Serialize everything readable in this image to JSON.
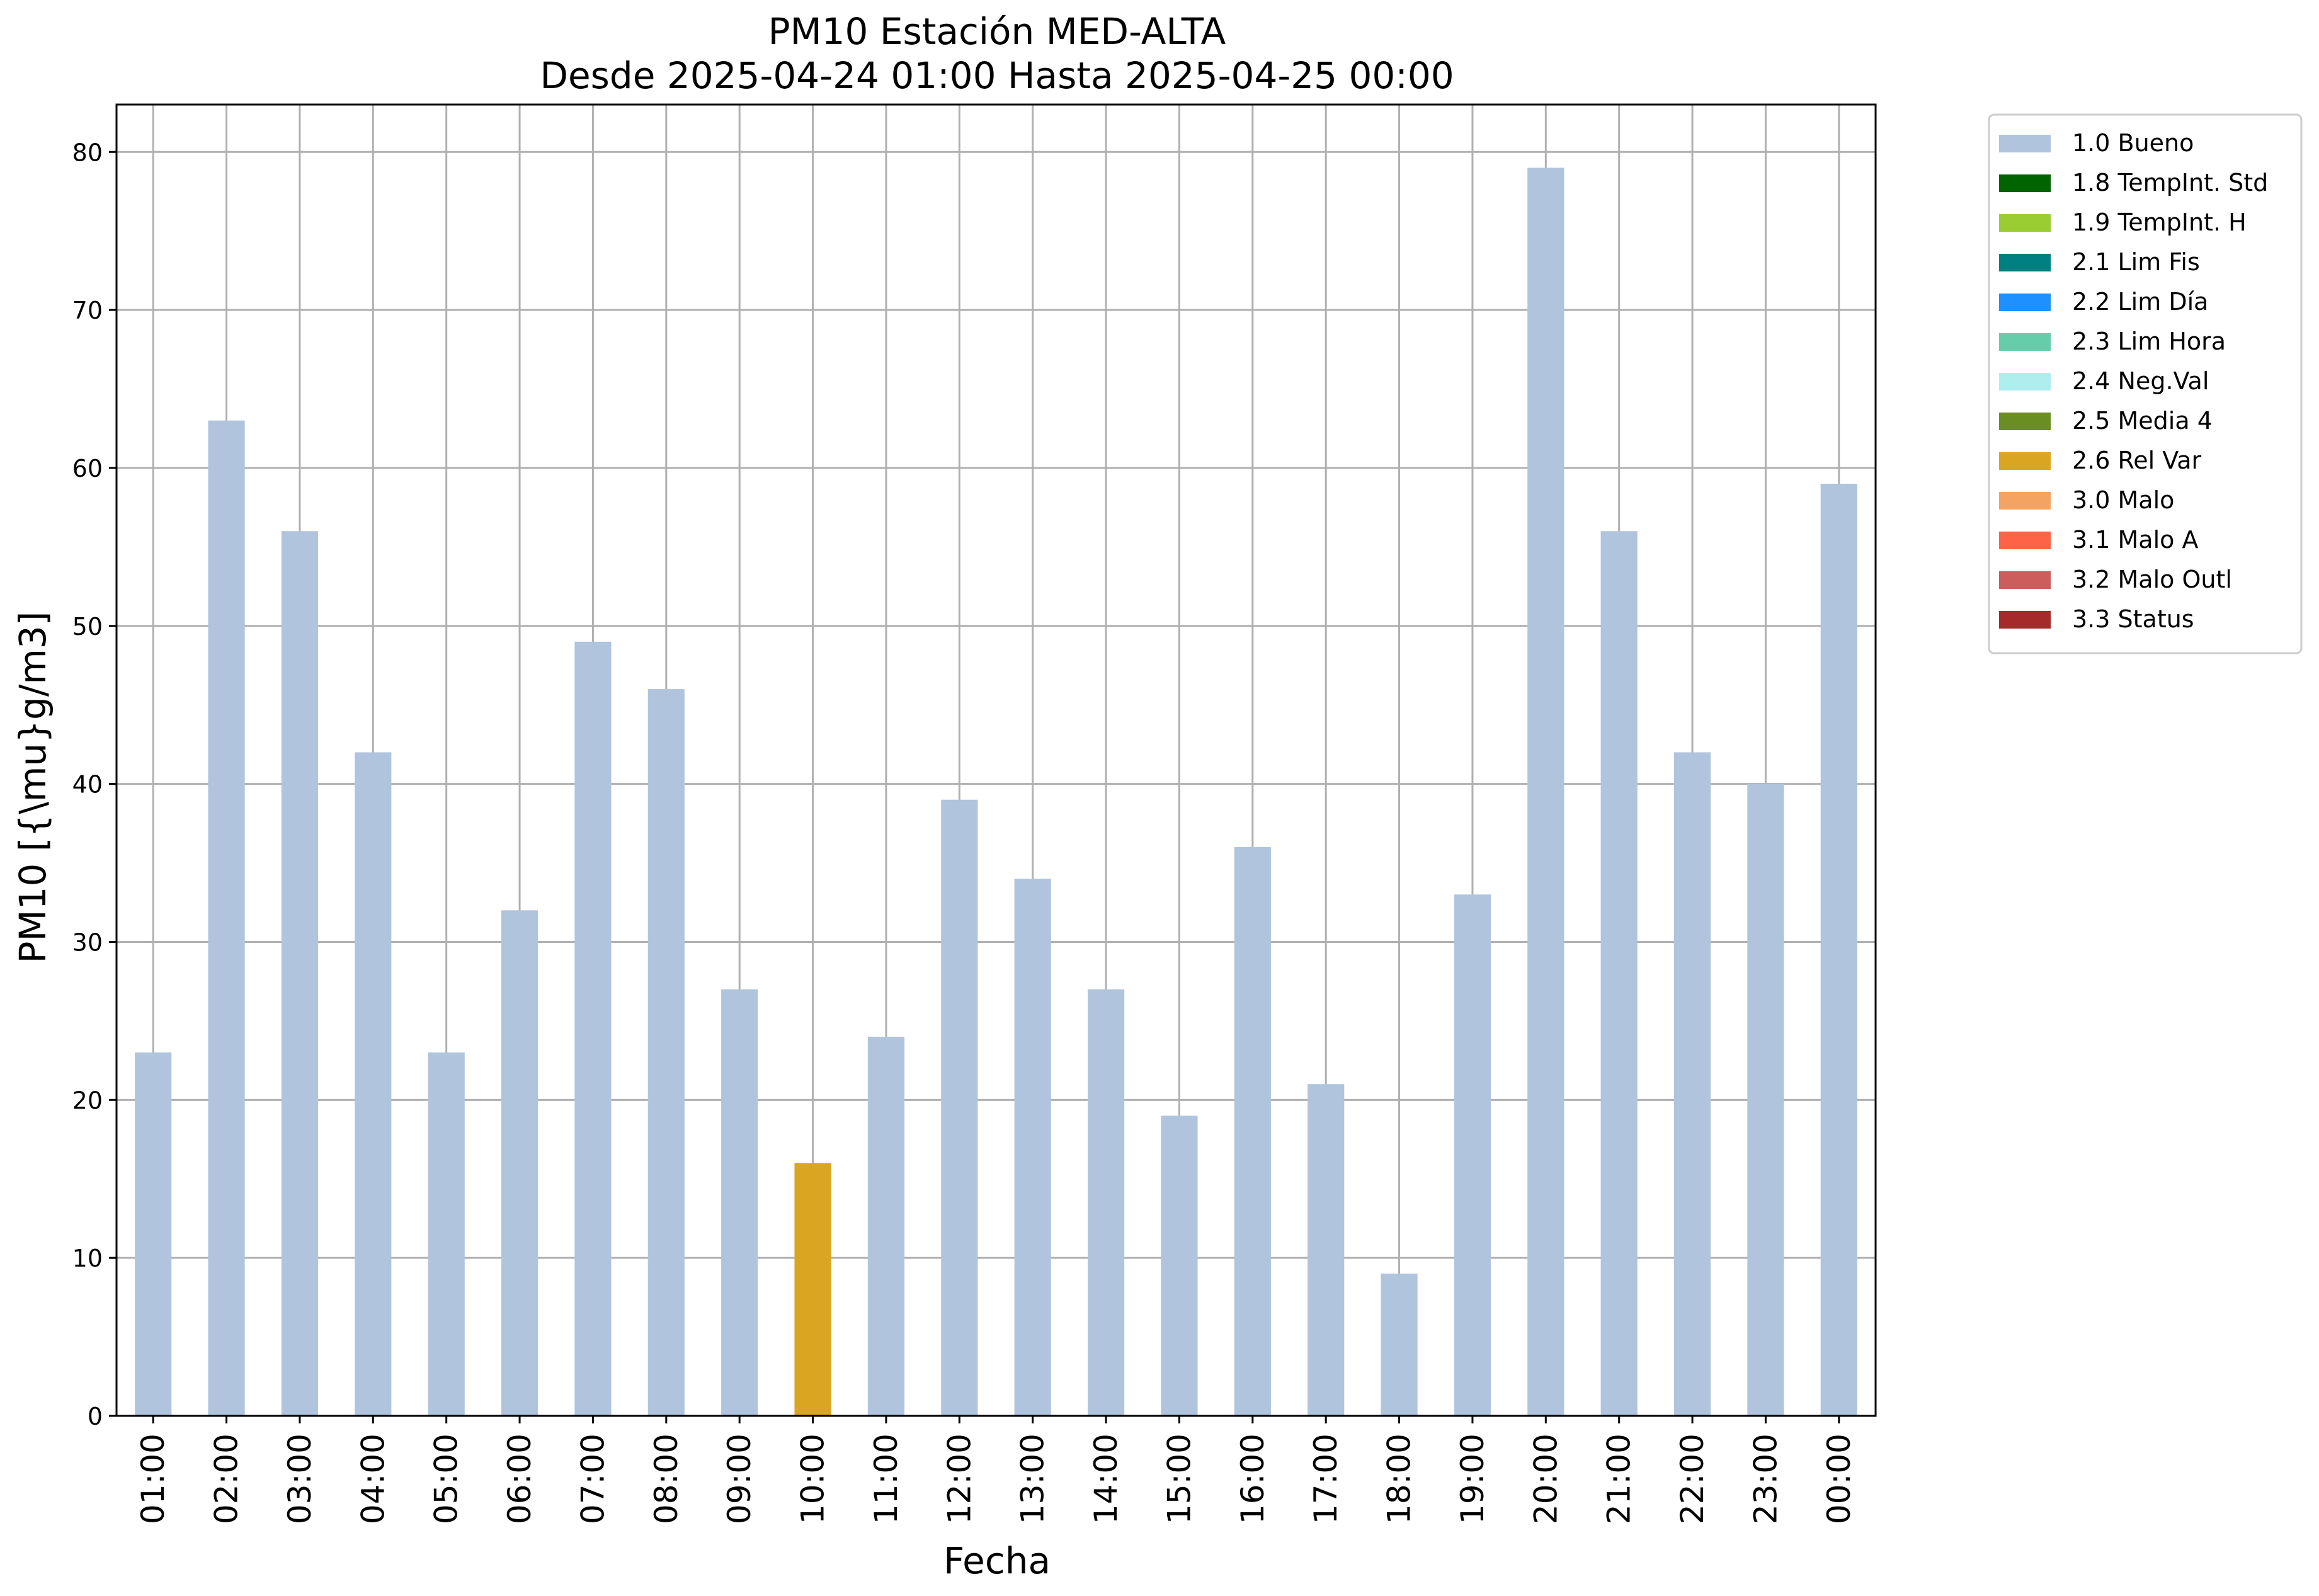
{
  "chart_data": {
    "type": "bar",
    "title": "PM10 Estación MED-ALTA",
    "subtitle": "Desde 2025-04-24 01:00 Hasta 2025-04-25 00:00",
    "xlabel": "Fecha",
    "ylabel": "PM10 [{\\mu}g/m3]",
    "ylim": [
      0,
      83
    ],
    "yticks": [
      0,
      10,
      20,
      30,
      40,
      50,
      60,
      70,
      80
    ],
    "grid": true,
    "legend_placement": "outside-top-right",
    "categories": [
      "01:00",
      "02:00",
      "03:00",
      "04:00",
      "05:00",
      "06:00",
      "07:00",
      "08:00",
      "09:00",
      "10:00",
      "11:00",
      "12:00",
      "13:00",
      "14:00",
      "15:00",
      "16:00",
      "17:00",
      "18:00",
      "19:00",
      "20:00",
      "21:00",
      "22:00",
      "23:00",
      "00:00"
    ],
    "values": [
      23,
      63,
      56,
      42,
      23,
      32,
      49,
      46,
      27,
      16,
      24,
      39,
      34,
      27,
      19,
      36,
      21,
      9,
      33,
      79,
      56,
      42,
      40,
      59
    ],
    "bar_flags": [
      "1.0 Bueno",
      "1.0 Bueno",
      "1.0 Bueno",
      "1.0 Bueno",
      "1.0 Bueno",
      "1.0 Bueno",
      "1.0 Bueno",
      "1.0 Bueno",
      "1.0 Bueno",
      "2.6 Rel Var",
      "1.0 Bueno",
      "1.0 Bueno",
      "1.0 Bueno",
      "1.0 Bueno",
      "1.0 Bueno",
      "1.0 Bueno",
      "1.0 Bueno",
      "1.0 Bueno",
      "1.0 Bueno",
      "1.0 Bueno",
      "1.0 Bueno",
      "1.0 Bueno",
      "1.0 Bueno",
      "1.0 Bueno"
    ],
    "legend": [
      {
        "label": "1.0 Bueno",
        "color": "#b0c4de"
      },
      {
        "label": "1.8 TempInt. Std",
        "color": "#006400"
      },
      {
        "label": "1.9 TempInt. H",
        "color": "#9acd32"
      },
      {
        "label": "2.1 Lim Fis",
        "color": "#008080"
      },
      {
        "label": "2.2 Lim Día",
        "color": "#1e90ff"
      },
      {
        "label": "2.3 Lim Hora",
        "color": "#66cdaa"
      },
      {
        "label": "2.4 Neg.Val",
        "color": "#afeeee"
      },
      {
        "label": "2.5 Media 4",
        "color": "#6b8e23"
      },
      {
        "label": "2.6 Rel Var",
        "color": "#daa520"
      },
      {
        "label": "3.0 Malo",
        "color": "#f4a460"
      },
      {
        "label": "3.1 Malo A",
        "color": "#ff6347"
      },
      {
        "label": "3.2 Malo Outl",
        "color": "#cd5c5c"
      },
      {
        "label": "3.3 Status",
        "color": "#a52a2a"
      }
    ]
  }
}
